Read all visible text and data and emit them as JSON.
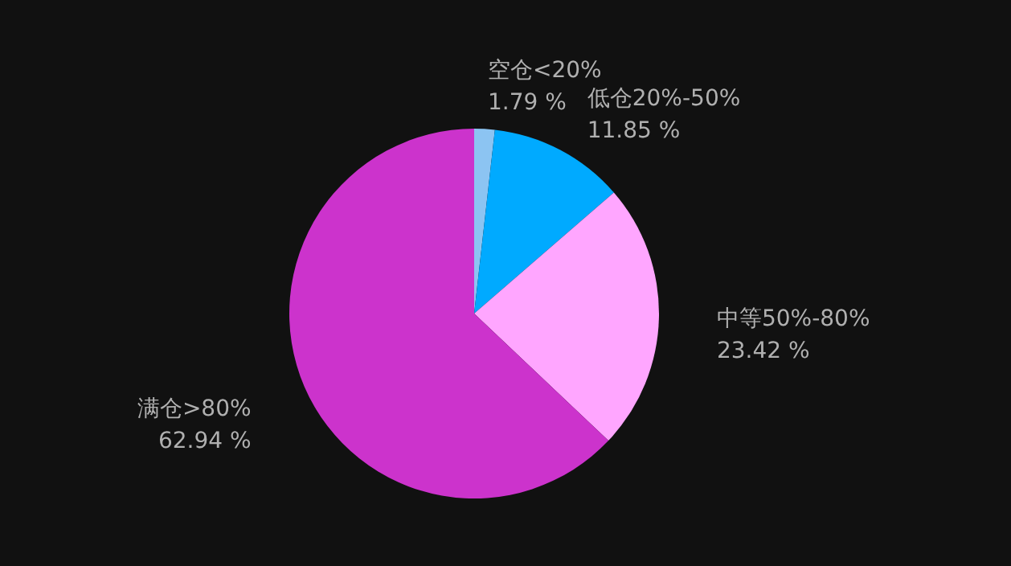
{
  "chart_data": {
    "type": "pie",
    "categories": [
      "空仓<20%",
      "低仓20%-50%",
      "中等50%-80%",
      "满仓>80%"
    ],
    "values": [
      1.79,
      11.85,
      23.42,
      62.94
    ],
    "colors": [
      "#8cc4f2",
      "#00aaff",
      "#ffa6ff",
      "#cc33cc"
    ],
    "value_labels": [
      "1.79 %",
      "11.85 %",
      "23.42 %",
      "62.94 %"
    ]
  }
}
